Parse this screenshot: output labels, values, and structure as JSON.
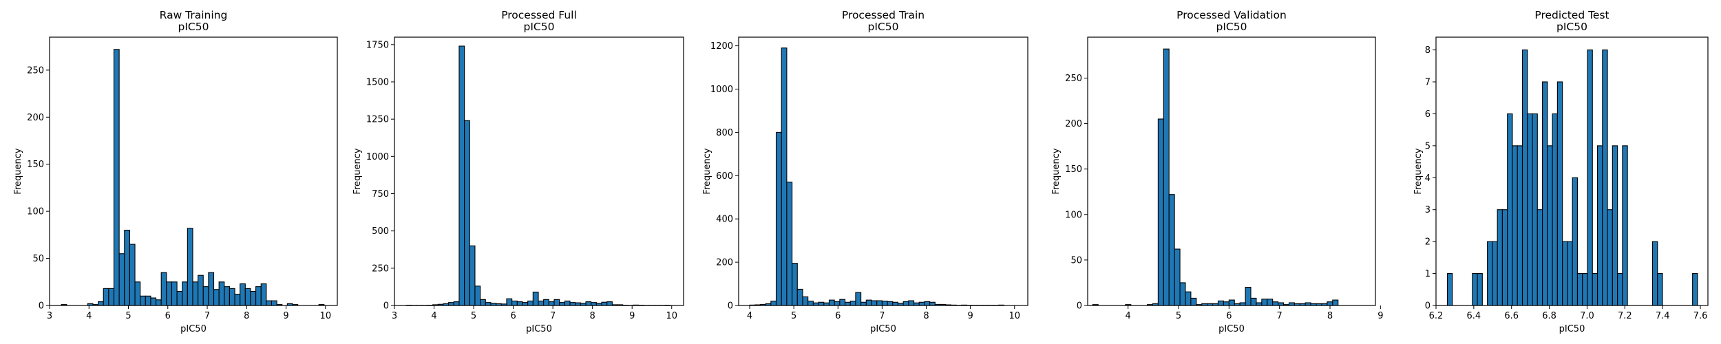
{
  "chart_data": [
    {
      "type": "bar",
      "title": "Raw Training",
      "subtitle": "pIC50",
      "xlabel": "pIC50",
      "ylabel": "Frequency",
      "xlim": [
        3.0,
        10.3
      ],
      "ylim": [
        0,
        285
      ],
      "xticks": [
        3,
        4,
        5,
        6,
        7,
        8,
        9,
        10
      ],
      "yticks": [
        0,
        50,
        100,
        150,
        200,
        250
      ],
      "bins": {
        "start": 3.3,
        "width": 0.1333,
        "values": [
          1,
          0,
          0,
          0,
          0,
          2,
          1,
          4,
          18,
          18,
          272,
          55,
          80,
          65,
          25,
          10,
          10,
          8,
          6,
          35,
          25,
          25,
          15,
          25,
          82,
          25,
          32,
          20,
          35,
          17,
          25,
          20,
          18,
          12,
          23,
          18,
          15,
          20,
          23,
          5,
          5,
          1,
          0,
          2,
          1,
          0,
          0,
          0,
          0,
          1
        ]
      },
      "bar_color": "#1f77b4",
      "grid": false
    },
    {
      "type": "bar",
      "title": "Processed Full",
      "subtitle": "pIC50",
      "xlabel": "pIC50",
      "ylabel": "Frequency",
      "xlim": [
        3.0,
        10.3
      ],
      "ylim": [
        0,
        1800
      ],
      "xticks": [
        3,
        4,
        5,
        6,
        7,
        8,
        9,
        10
      ],
      "yticks": [
        0,
        250,
        500,
        750,
        1000,
        1250,
        1500,
        1750
      ],
      "yticklabels": [
        "0",
        "250",
        "500",
        "750",
        "1000",
        "1250",
        "1500",
        "1750"
      ],
      "bins": {
        "start": 3.3,
        "width": 0.1333,
        "values": [
          2,
          1,
          1,
          1,
          2,
          5,
          8,
          12,
          20,
          25,
          1740,
          1240,
          400,
          130,
          40,
          20,
          15,
          12,
          10,
          45,
          30,
          25,
          20,
          30,
          90,
          30,
          40,
          25,
          40,
          20,
          30,
          20,
          18,
          15,
          25,
          20,
          15,
          22,
          25,
          5,
          5,
          2,
          1,
          3,
          2,
          1,
          1,
          1,
          1,
          2
        ]
      },
      "bar_color": "#1f77b4",
      "grid": false
    },
    {
      "type": "bar",
      "title": "Processed Train",
      "subtitle": "pIC50",
      "xlabel": "pIC50",
      "ylabel": "Frequency",
      "xlim": [
        3.75,
        10.3
      ],
      "ylim": [
        0,
        1240
      ],
      "xticks": [
        4,
        5,
        6,
        7,
        8,
        9,
        10
      ],
      "yticks": [
        0,
        200,
        400,
        600,
        800,
        1000,
        1200
      ],
      "bins": {
        "start": 4.0,
        "width": 0.12,
        "values": [
          2,
          3,
          5,
          8,
          20,
          800,
          1190,
          570,
          195,
          75,
          40,
          20,
          12,
          15,
          12,
          25,
          18,
          28,
          15,
          20,
          60,
          15,
          25,
          22,
          22,
          20,
          18,
          15,
          10,
          18,
          22,
          12,
          15,
          18,
          15,
          5,
          5,
          3,
          2,
          1,
          2,
          1,
          1,
          1,
          1,
          1,
          1,
          2
        ]
      },
      "bar_color": "#1f77b4",
      "grid": false
    },
    {
      "type": "bar",
      "title": "Processed Validation",
      "subtitle": "pIC50",
      "xlabel": "pIC50",
      "ylabel": "Frequency",
      "xlim": [
        3.2,
        8.9
      ],
      "ylim": [
        0,
        295
      ],
      "xticks": [
        4,
        5,
        6,
        7,
        8,
        9
      ],
      "yticks": [
        0,
        50,
        100,
        150,
        200,
        250
      ],
      "bins": {
        "start": 3.3,
        "width": 0.108,
        "values": [
          1,
          0,
          0,
          0,
          0,
          0,
          1,
          0,
          0,
          0,
          1,
          2,
          205,
          282,
          122,
          62,
          25,
          15,
          8,
          1,
          2,
          2,
          2,
          5,
          4,
          6,
          2,
          3,
          20,
          8,
          3,
          7,
          7,
          4,
          3,
          1,
          3,
          2,
          2,
          3,
          2,
          2,
          2,
          4,
          6,
          0,
          0,
          0,
          0,
          0
        ]
      },
      "bar_color": "#1f77b4",
      "grid": false
    },
    {
      "type": "bar",
      "title": "Predicted Test",
      "subtitle": "pIC50",
      "xlabel": "pIC50",
      "ylabel": "Frequency",
      "xlim": [
        6.2,
        7.64
      ],
      "ylim": [
        0,
        8.4
      ],
      "xticks": [
        6.2,
        6.4,
        6.6,
        6.8,
        7.0,
        7.2,
        7.4,
        7.6
      ],
      "xticklabels": [
        "6.2",
        "6.4",
        "6.6",
        "6.8",
        "7.0",
        "7.2",
        "7.4",
        "7.6"
      ],
      "yticks": [
        0,
        1,
        2,
        3,
        4,
        5,
        6,
        7,
        8
      ],
      "bins": {
        "start": 6.26,
        "width": 0.0265,
        "values": [
          1,
          0,
          0,
          0,
          0,
          1,
          1,
          0,
          2,
          2,
          3,
          3,
          6,
          5,
          5,
          8,
          6,
          6,
          3,
          7,
          5,
          6,
          7,
          2,
          2,
          4,
          1,
          1,
          8,
          1,
          5,
          8,
          3,
          5,
          1,
          5,
          0,
          0,
          0,
          0,
          0,
          2,
          1,
          0,
          0,
          0,
          0,
          0,
          0,
          1
        ]
      },
      "bar_color": "#1f77b4",
      "grid": false
    }
  ]
}
